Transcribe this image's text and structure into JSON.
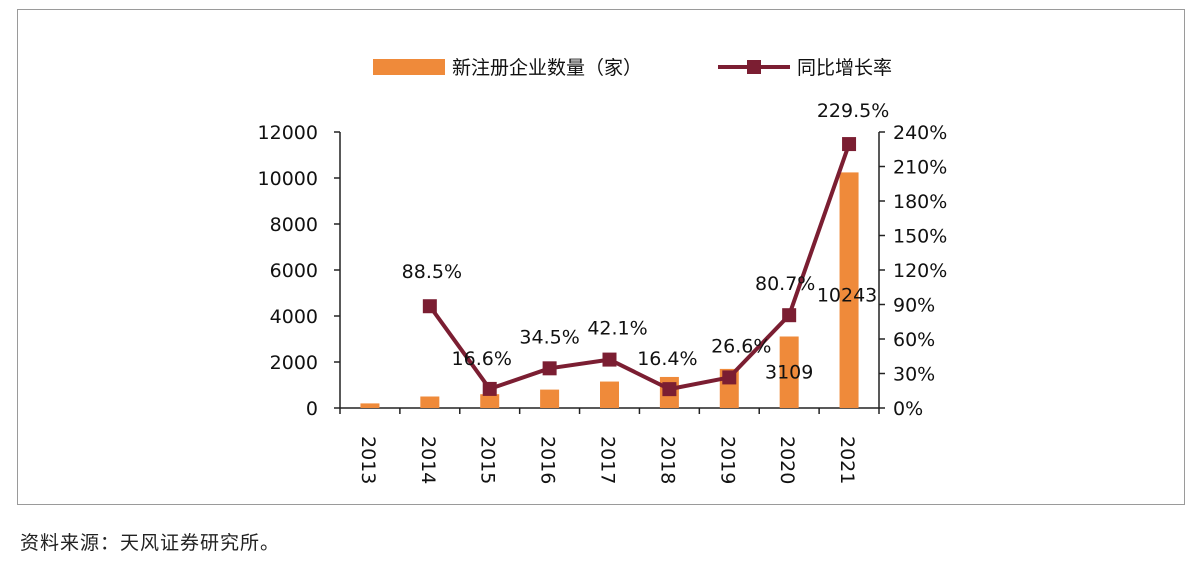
{
  "chart_data": {
    "type": "bar",
    "categories": [
      "2013",
      "2014",
      "2015",
      "2016",
      "2017",
      "2018",
      "2019",
      "2020",
      "2021"
    ],
    "series": [
      {
        "name": "新注册企业数量（家）",
        "kind": "bar",
        "axis": "left",
        "color": "#ef8a3a",
        "values": [
          200,
          500,
          600,
          800,
          1150,
          1350,
          1700,
          3109,
          10243
        ]
      },
      {
        "name": "同比增长率",
        "kind": "line",
        "axis": "right",
        "color": "#7b1e32",
        "marker": "square",
        "values": [
          null,
          88.5,
          16.6,
          34.5,
          42.1,
          16.4,
          26.6,
          80.7,
          229.5
        ]
      }
    ],
    "data_labels": {
      "bars": [
        "",
        "",
        "",
        "",
        "",
        "",
        "",
        "3109",
        "10243"
      ],
      "line": [
        "",
        "88.5%",
        "16.6%",
        "34.5%",
        "42.1%",
        "16.4%",
        "26.6%",
        "80.7%",
        "229.5%"
      ]
    },
    "y_left": {
      "ylim": [
        0,
        12000
      ],
      "ticks": [
        "0",
        "2000",
        "4000",
        "6000",
        "8000",
        "10000",
        "12000"
      ]
    },
    "y_right": {
      "ylim": [
        0,
        240
      ],
      "ticks": [
        "0%",
        "30%",
        "60%",
        "90%",
        "120%",
        "150%",
        "180%",
        "210%",
        "240%"
      ]
    },
    "legend_position": "top-center",
    "grid": false
  },
  "source_note": "资料来源：天风证券研究所。"
}
